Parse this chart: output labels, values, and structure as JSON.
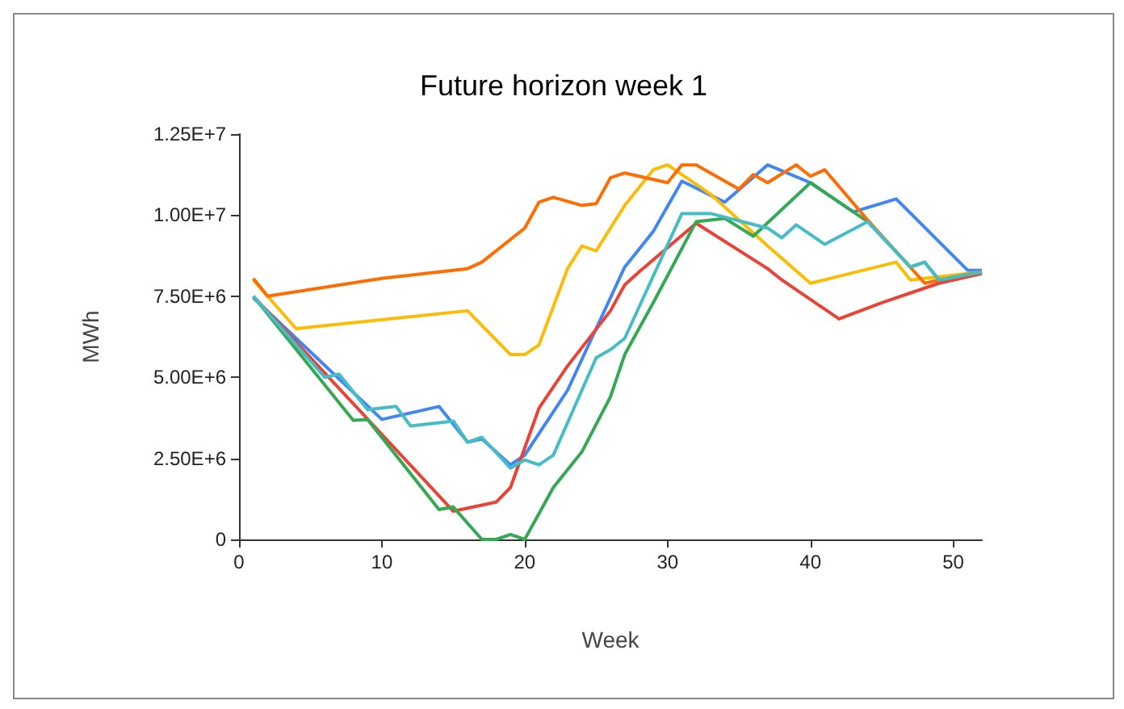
{
  "chart_data": {
    "type": "line",
    "title": "Future horizon week 1",
    "xlabel": "Week",
    "ylabel": "MWh",
    "xlim": [
      0,
      52
    ],
    "xticks": [
      0,
      10,
      20,
      30,
      40,
      50
    ],
    "ylim": [
      0,
      12500000
    ],
    "yticks": [
      0,
      {
        "value": 2500000,
        "label": "2.50E+6"
      },
      {
        "value": 5000000,
        "label": "5.00E+6"
      },
      {
        "value": 7500000,
        "label": "7.50E+6"
      },
      {
        "value": 10000000,
        "label": "1.00E+7"
      },
      {
        "value": 12500000,
        "label": "1.25E+7"
      }
    ],
    "grid": false,
    "marker": "none",
    "line_style": "solid",
    "series": [
      {
        "color": "#4285f4",
        "x": [
          1,
          10,
          14,
          16,
          17,
          19,
          20,
          23,
          27,
          29,
          31,
          34,
          37,
          40,
          43,
          46,
          51,
          52
        ],
        "values": [
          7450000,
          3700000,
          4100000,
          3000000,
          3100000,
          2300000,
          2600000,
          4600000,
          8400000,
          9500000,
          11050000,
          10400000,
          11550000,
          11000000,
          10100000,
          10500000,
          8300000,
          8300000
        ]
      },
      {
        "color": "#ea4335",
        "x": [
          1,
          15,
          18,
          19,
          21,
          23,
          26,
          27,
          28,
          32,
          37,
          38,
          42,
          45,
          49,
          52
        ],
        "values": [
          7500000,
          870000,
          1150000,
          1600000,
          4050000,
          5350000,
          7050000,
          7850000,
          8250000,
          9750000,
          8350000,
          8000000,
          6800000,
          7300000,
          7900000,
          8200000
        ]
      },
      {
        "color": "#fbbc04",
        "x": [
          1,
          4,
          16,
          19,
          20,
          21,
          23,
          24,
          25,
          27,
          29,
          30,
          33,
          37,
          40,
          46,
          47,
          52
        ],
        "values": [
          8000000,
          6500000,
          7050000,
          5700000,
          5700000,
          6000000,
          8350000,
          9050000,
          8900000,
          10300000,
          11400000,
          11550000,
          10650000,
          9050000,
          7900000,
          8550000,
          8000000,
          8250000
        ]
      },
      {
        "color": "#34a853",
        "x": [
          1,
          8,
          9,
          14,
          15,
          17,
          18,
          19,
          20,
          22,
          24,
          26,
          27,
          29,
          32,
          34,
          36,
          40,
          44,
          47,
          48,
          49,
          52
        ],
        "values": [
          7500000,
          3670000,
          3700000,
          920000,
          1000000,
          0,
          0,
          150000,
          0,
          1600000,
          2700000,
          4400000,
          5700000,
          7300000,
          9800000,
          9900000,
          9350000,
          11000000,
          9800000,
          8400000,
          8550000,
          8000000,
          8250000
        ]
      },
      {
        "color": "#ff6d01",
        "x": [
          1,
          2,
          10,
          16,
          17,
          20,
          21,
          22,
          24,
          25,
          26,
          27,
          30,
          31,
          32,
          35,
          36,
          37,
          39,
          40,
          41,
          44,
          48,
          49,
          52
        ],
        "values": [
          8050000,
          7500000,
          8050000,
          8350000,
          8550000,
          9600000,
          10400000,
          10550000,
          10300000,
          10350000,
          11150000,
          11300000,
          11000000,
          11550000,
          11550000,
          10800000,
          11250000,
          11000000,
          11550000,
          11200000,
          11400000,
          9850000,
          7900000,
          8000000,
          8250000
        ]
      },
      {
        "color": "#46bdc6",
        "x": [
          1,
          6,
          7,
          9,
          11,
          12,
          15,
          16,
          17,
          19,
          20,
          21,
          22,
          25,
          26,
          27,
          31,
          33,
          37,
          38,
          39,
          41,
          44,
          47,
          48,
          49,
          52
        ],
        "values": [
          7500000,
          5000000,
          5100000,
          4000000,
          4100000,
          3500000,
          3650000,
          3000000,
          3150000,
          2200000,
          2450000,
          2300000,
          2600000,
          5600000,
          5850000,
          6200000,
          10050000,
          10050000,
          9600000,
          9300000,
          9700000,
          9100000,
          9800000,
          8400000,
          8550000,
          8000000,
          8250000
        ]
      }
    ]
  }
}
